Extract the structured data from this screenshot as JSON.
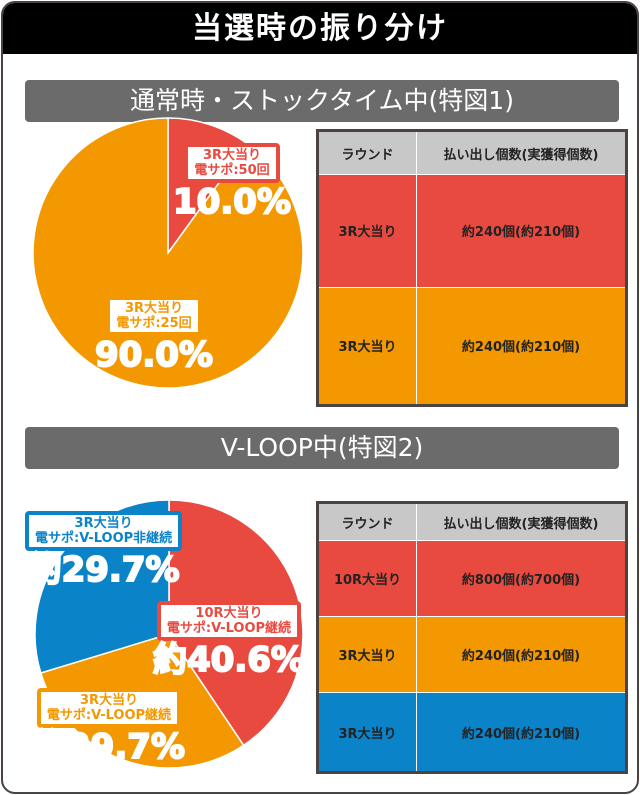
{
  "title": "当選時の振り分け",
  "colors": {
    "red": "#e84a40",
    "orange": "#f39800",
    "blue": "#0a83c9"
  },
  "sections": [
    {
      "banner": "通常時・ストックタイム中(特図1)",
      "table": {
        "headers": [
          "ラウンド",
          "払い出し個数(実獲得個数)"
        ],
        "rows": [
          [
            "3R大当り",
            "約240個(約210個)"
          ],
          [
            "3R大当り",
            "約240個(約210個)"
          ]
        ]
      }
    },
    {
      "banner": "V-LOOP中(特図2)",
      "table": {
        "headers": [
          "ラウンド",
          "払い出し個数(実獲得個数)"
        ],
        "rows": [
          [
            "10R大当り",
            "約800個(約700個)"
          ],
          [
            "3R大当り",
            "約240個(約210個)"
          ],
          [
            "3R大当り",
            "約240個(約210個)"
          ]
        ]
      }
    }
  ],
  "chart_data": [
    {
      "type": "pie",
      "slices": [
        {
          "line1": "3R大当り",
          "line2": "電サポ:50回",
          "pct_label": "10.0%",
          "value": 10.0,
          "color": "#e84a40"
        },
        {
          "line1": "3R大当り",
          "line2": "電サポ:25回",
          "pct_label": "90.0%",
          "value": 90.0,
          "color": "#f39800"
        }
      ]
    },
    {
      "type": "pie",
      "slices": [
        {
          "line1": "10R大当り",
          "line2": "電サポ:V-LOOP継続",
          "pct_label": "約40.6%",
          "value": 40.6,
          "color": "#e84a40"
        },
        {
          "line1": "3R大当り",
          "line2": "電サポ:V-LOOP継続",
          "pct_label": "約29.7%",
          "value": 29.7,
          "color": "#f39800"
        },
        {
          "line1": "3R大当り",
          "line2": "電サポ:V-LOOP非継続",
          "pct_label": "約29.7%",
          "value": 29.7,
          "color": "#0a83c9"
        }
      ]
    }
  ]
}
